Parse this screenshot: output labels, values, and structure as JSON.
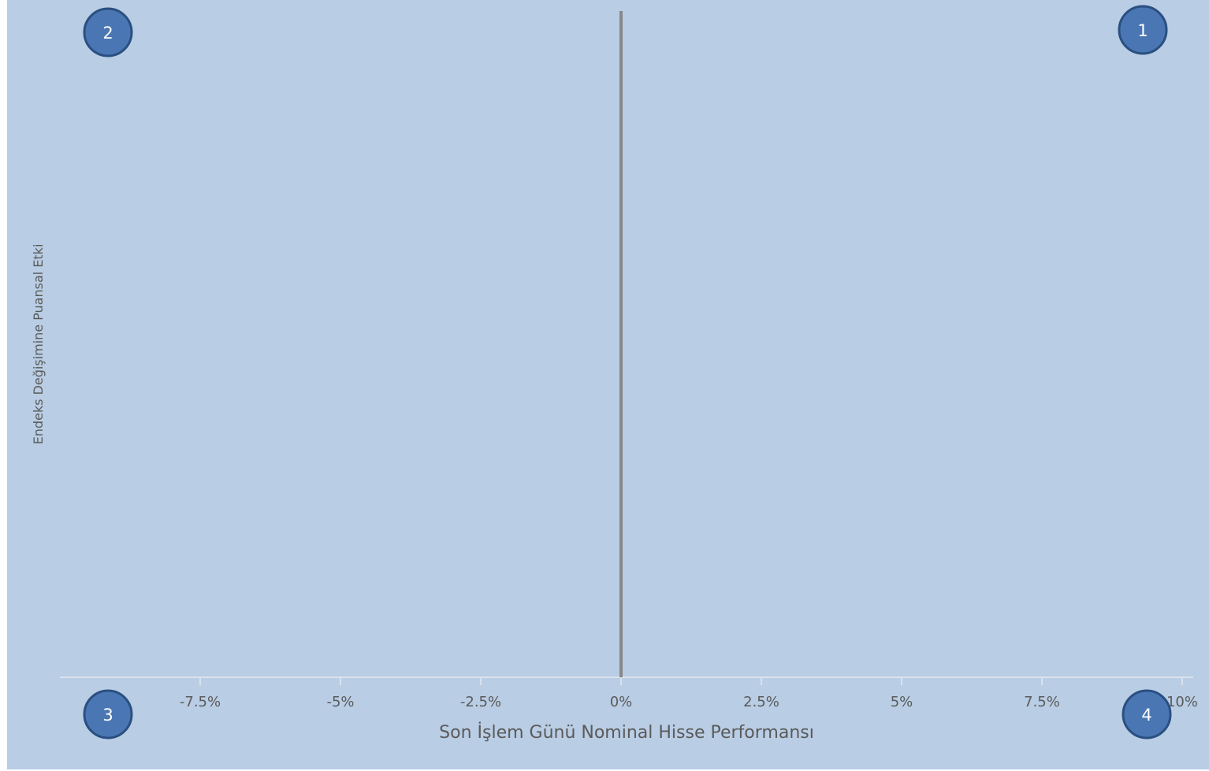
{
  "chart_data": {
    "type": "scatter",
    "title": "",
    "xlabel": "Son İşlem Günü Nominal Hisse Performansı",
    "ylabel": "Endeks Değişimine Puansal Etki",
    "xlim": [
      -10,
      10
    ],
    "x_ticks": [
      {
        "value": -7.5,
        "label": "-7.5%"
      },
      {
        "value": -5,
        "label": "-5%"
      },
      {
        "value": -2.5,
        "label": "-2.5%"
      },
      {
        "value": 0,
        "label": "0%"
      },
      {
        "value": 2.5,
        "label": "2.5%"
      },
      {
        "value": 5,
        "label": "5%"
      },
      {
        "value": 7.5,
        "label": "7.5%"
      },
      {
        "value": 10,
        "label": "10%"
      }
    ],
    "zero_line_x": 0,
    "series": [],
    "grid": false,
    "quadrants": [
      {
        "label": "1",
        "position": "top-right"
      },
      {
        "label": "2",
        "position": "top-left"
      },
      {
        "label": "3",
        "position": "bottom-left"
      },
      {
        "label": "4",
        "position": "bottom-right"
      }
    ],
    "colors": {
      "page_background": "#ffffff",
      "plot_background": "#b9cde4",
      "axis_line": "#d8e2ee",
      "zero_line": "#888888",
      "badge_fill": "#4a77b4",
      "badge_stroke": "#2a4f80",
      "text": "#5a5a5a"
    }
  }
}
